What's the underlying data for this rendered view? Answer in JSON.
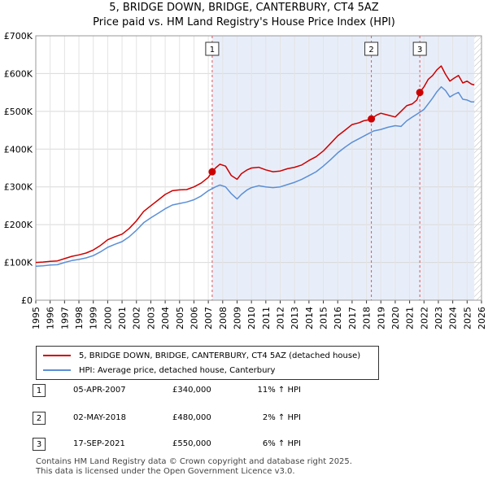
{
  "chart_data": {
    "type": "line",
    "title_line1": "5, BRIDGE DOWN, BRIDGE, CANTERBURY, CT4 5AZ",
    "title_line2": "Price paid vs. HM Land Registry's House Price Index (HPI)",
    "xlim": [
      1995,
      2026
    ],
    "ylim": [
      0,
      700000
    ],
    "x_ticks": [
      1995,
      1996,
      1997,
      1998,
      1999,
      2000,
      2001,
      2002,
      2003,
      2004,
      2005,
      2006,
      2007,
      2008,
      2009,
      2010,
      2011,
      2012,
      2013,
      2014,
      2015,
      2016,
      2017,
      2018,
      2019,
      2020,
      2021,
      2022,
      2023,
      2024,
      2025,
      2026
    ],
    "y_ticks": [
      {
        "value": 0,
        "label": "£0"
      },
      {
        "value": 100000,
        "label": "£100K"
      },
      {
        "value": 200000,
        "label": "£200K"
      },
      {
        "value": 300000,
        "label": "£300K"
      },
      {
        "value": 400000,
        "label": "£400K"
      },
      {
        "value": 500000,
        "label": "£500K"
      },
      {
        "value": 600000,
        "label": "£600K"
      },
      {
        "value": 700000,
        "label": "£700K"
      }
    ],
    "shaded_range": [
      2007.27,
      2025.5
    ],
    "hatch_from": 2025.5,
    "series": [
      {
        "name": "5, BRIDGE DOWN, BRIDGE, CANTERBURY, CT4 5AZ (detached house)",
        "color": "#cc0000",
        "x": [
          1995.0,
          1995.5,
          1996.0,
          1996.5,
          1997.0,
          1997.5,
          1998.0,
          1998.5,
          1999.0,
          1999.5,
          2000.0,
          2000.5,
          2001.0,
          2001.5,
          2002.0,
          2002.5,
          2003.0,
          2003.5,
          2004.0,
          2004.5,
          2005.0,
          2005.5,
          2006.0,
          2006.5,
          2007.0,
          2007.27,
          2007.5,
          2007.8,
          2008.2,
          2008.6,
          2009.0,
          2009.3,
          2009.7,
          2010.0,
          2010.5,
          2011.0,
          2011.5,
          2012.0,
          2012.5,
          2013.0,
          2013.5,
          2014.0,
          2014.5,
          2015.0,
          2015.5,
          2016.0,
          2016.5,
          2017.0,
          2017.5,
          2017.8,
          2018.1,
          2018.34,
          2018.7,
          2019.0,
          2019.5,
          2020.0,
          2020.4,
          2020.8,
          2021.2,
          2021.5,
          2021.71,
          2022.0,
          2022.3,
          2022.6,
          2022.9,
          2023.2,
          2023.5,
          2023.8,
          2024.1,
          2024.4,
          2024.7,
          2025.0,
          2025.3,
          2025.5
        ],
        "values": [
          100000,
          101000,
          103000,
          104000,
          110000,
          116000,
          120000,
          125000,
          133000,
          145000,
          160000,
          168000,
          175000,
          190000,
          210000,
          235000,
          250000,
          265000,
          280000,
          290000,
          292000,
          293000,
          300000,
          310000,
          325000,
          340000,
          350000,
          360000,
          355000,
          330000,
          320000,
          335000,
          345000,
          350000,
          352000,
          345000,
          340000,
          342000,
          348000,
          352000,
          358000,
          370000,
          380000,
          395000,
          415000,
          435000,
          450000,
          465000,
          470000,
          475000,
          477000,
          480000,
          490000,
          495000,
          490000,
          485000,
          500000,
          515000,
          520000,
          530000,
          550000,
          565000,
          585000,
          595000,
          610000,
          620000,
          598000,
          580000,
          588000,
          595000,
          575000,
          580000,
          572000,
          570000
        ]
      },
      {
        "name": "HPI: Average price, detached house, Canterbury",
        "color": "#5b8fd6",
        "x": [
          1995.0,
          1995.5,
          1996.0,
          1996.5,
          1997.0,
          1997.5,
          1998.0,
          1998.5,
          1999.0,
          1999.5,
          2000.0,
          2000.5,
          2001.0,
          2001.5,
          2002.0,
          2002.5,
          2003.0,
          2003.5,
          2004.0,
          2004.5,
          2005.0,
          2005.5,
          2006.0,
          2006.5,
          2007.0,
          2007.5,
          2007.8,
          2008.2,
          2008.6,
          2009.0,
          2009.3,
          2009.7,
          2010.0,
          2010.5,
          2011.0,
          2011.5,
          2012.0,
          2012.5,
          2013.0,
          2013.5,
          2014.0,
          2014.5,
          2015.0,
          2015.5,
          2016.0,
          2016.5,
          2017.0,
          2017.5,
          2018.0,
          2018.5,
          2019.0,
          2019.5,
          2020.0,
          2020.4,
          2020.8,
          2021.2,
          2021.6,
          2022.0,
          2022.3,
          2022.6,
          2022.9,
          2023.2,
          2023.5,
          2023.8,
          2024.1,
          2024.4,
          2024.7,
          2025.0,
          2025.3,
          2025.5
        ],
        "values": [
          90000,
          91000,
          93000,
          94000,
          100000,
          105000,
          108000,
          112000,
          118000,
          128000,
          140000,
          148000,
          155000,
          168000,
          185000,
          205000,
          218000,
          230000,
          242000,
          252000,
          256000,
          260000,
          266000,
          276000,
          290000,
          300000,
          305000,
          300000,
          282000,
          268000,
          280000,
          292000,
          298000,
          303000,
          300000,
          298000,
          300000,
          306000,
          312000,
          320000,
          330000,
          340000,
          355000,
          372000,
          390000,
          405000,
          418000,
          428000,
          438000,
          448000,
          452000,
          458000,
          462000,
          460000,
          475000,
          485000,
          495000,
          505000,
          520000,
          535000,
          552000,
          565000,
          555000,
          538000,
          545000,
          550000,
          532000,
          530000,
          525000,
          525000
        ]
      }
    ],
    "sales": [
      {
        "num": "1",
        "x": 2007.27,
        "price_value": 340000
      },
      {
        "num": "2",
        "x": 2018.34,
        "price_value": 480000
      },
      {
        "num": "3",
        "x": 2021.71,
        "price_value": 550000
      }
    ]
  },
  "legend": {
    "property_label": "5, BRIDGE DOWN, BRIDGE, CANTERBURY, CT4 5AZ (detached house)",
    "hpi_label": "HPI: Average price, detached house, Canterbury"
  },
  "sales_table": [
    {
      "num": "1",
      "date": "05-APR-2007",
      "price": "£340,000",
      "hpi": "11% ↑ HPI"
    },
    {
      "num": "2",
      "date": "02-MAY-2018",
      "price": "£480,000",
      "hpi": "2% ↑ HPI"
    },
    {
      "num": "3",
      "date": "17-SEP-2021",
      "price": "£550,000",
      "hpi": "6% ↑ HPI"
    }
  ],
  "footer": {
    "line1": "Contains HM Land Registry data © Crown copyright and database right 2025.",
    "line2": "This data is licensed under the Open Government Licence v3.0."
  },
  "colors": {
    "property": "#cc0000",
    "hpi": "#5b8fd6",
    "shade": "#e8eef9"
  }
}
